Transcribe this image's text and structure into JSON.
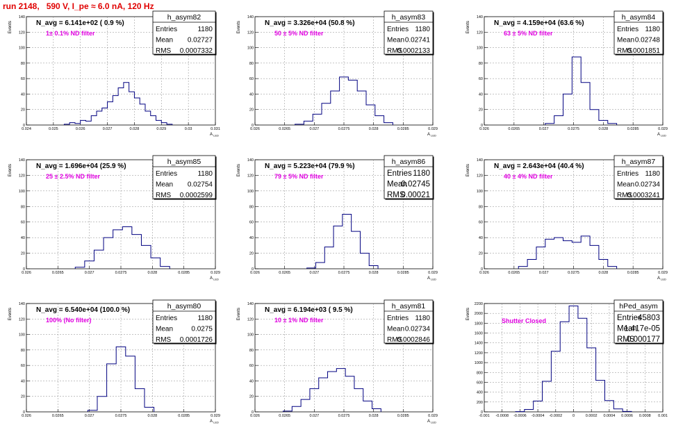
{
  "header": {
    "title": "run 2148,   590 V, I_pe ≈ 6.0 nA, 120 Hz"
  },
  "colors": {
    "title": "#e00000",
    "annotation": "#e000e0",
    "histogram": "#000080",
    "grid": "#888888"
  },
  "chart_data": [
    {
      "type": "histogram",
      "name": "h_asym82",
      "ylabel": "Events",
      "xlabel": "A_{LED}",
      "xlim": [
        0.024,
        0.031
      ],
      "ylim": [
        0,
        140
      ],
      "xticks": [
        "0.024",
        "0.025",
        "0.026",
        "0.027",
        "0.028",
        "0.029",
        "0.03",
        "0.031"
      ],
      "yticks": [
        "0",
        "20",
        "40",
        "60",
        "80",
        "100",
        "120",
        "140"
      ],
      "grid": true,
      "nav_label": "N_avg = 6.141e+02 ( 0.9 %)",
      "annotation": "1± 0.1% ND filter",
      "stats": [
        [
          "Entries",
          "1180"
        ],
        [
          "Mean",
          "0.02727"
        ],
        [
          "RMS",
          "0.0007332"
        ]
      ],
      "values": [
        [
          0.0255,
          1
        ],
        [
          0.0257,
          3
        ],
        [
          0.0259,
          2
        ],
        [
          0.0261,
          6
        ],
        [
          0.0263,
          5
        ],
        [
          0.0265,
          12
        ],
        [
          0.0267,
          18
        ],
        [
          0.0269,
          22
        ],
        [
          0.0271,
          30
        ],
        [
          0.0273,
          38
        ],
        [
          0.0275,
          48
        ],
        [
          0.0277,
          55
        ],
        [
          0.0279,
          43
        ],
        [
          0.0281,
          35
        ],
        [
          0.0283,
          27
        ],
        [
          0.0285,
          18
        ],
        [
          0.0287,
          12
        ],
        [
          0.0289,
          6
        ],
        [
          0.0291,
          3
        ],
        [
          0.0293,
          1
        ]
      ]
    },
    {
      "type": "histogram",
      "name": "h_asym83",
      "ylabel": "Events",
      "xlabel": "A_{LED}",
      "xlim": [
        0.026,
        0.029
      ],
      "ylim": [
        0,
        140
      ],
      "xticks": [
        "0.026",
        "0.0265",
        "0.027",
        "0.0275",
        "0.028",
        "0.0285",
        "0.029"
      ],
      "yticks": [
        "0",
        "20",
        "40",
        "60",
        "80",
        "100",
        "120",
        "140"
      ],
      "grid": true,
      "nav_label": "N_avg = 3.326e+04 (50.8 %)",
      "annotation": "50 ± 5% ND filter",
      "stats": [
        [
          "Entries",
          "1180"
        ],
        [
          "Mean",
          "0.02741"
        ],
        [
          "RMS",
          "0.0002133"
        ]
      ],
      "values": [
        [
          0.02675,
          1
        ],
        [
          0.0269,
          5
        ],
        [
          0.02705,
          14
        ],
        [
          0.0272,
          28
        ],
        [
          0.02735,
          44
        ],
        [
          0.0275,
          62
        ],
        [
          0.02765,
          58
        ],
        [
          0.0278,
          44
        ],
        [
          0.02795,
          26
        ],
        [
          0.0281,
          12
        ],
        [
          0.02825,
          3
        ]
      ]
    },
    {
      "type": "histogram",
      "name": "h_asym84",
      "ylabel": "Events",
      "xlabel": "A_{LED}",
      "xlim": [
        0.026,
        0.029
      ],
      "ylim": [
        0,
        140
      ],
      "xticks": [
        "0.026",
        "0.0265",
        "0.027",
        "0.0275",
        "0.028",
        "0.0285",
        "0.029"
      ],
      "yticks": [
        "0",
        "20",
        "40",
        "60",
        "80",
        "100",
        "120",
        "140"
      ],
      "grid": true,
      "nav_label": "N_avg = 4.159e+04 (63.6 %)",
      "annotation": "63 ± 5% ND filter",
      "stats": [
        [
          "Entries",
          "1180"
        ],
        [
          "Mean",
          "0.02748"
        ],
        [
          "RMS",
          "0.0001851"
        ]
      ],
      "values": [
        [
          0.0271,
          2
        ],
        [
          0.02725,
          12
        ],
        [
          0.0274,
          40
        ],
        [
          0.02755,
          88
        ],
        [
          0.0277,
          55
        ],
        [
          0.02785,
          20
        ],
        [
          0.028,
          6
        ],
        [
          0.02815,
          2
        ]
      ]
    },
    {
      "type": "histogram",
      "name": "h_asym85",
      "ylabel": "Events",
      "xlabel": "A_{LED}",
      "xlim": [
        0.026,
        0.029
      ],
      "ylim": [
        0,
        140
      ],
      "xticks": [
        "0.026",
        "0.0265",
        "0.027",
        "0.0275",
        "0.028",
        "0.0285",
        "0.029"
      ],
      "yticks": [
        "0",
        "20",
        "40",
        "60",
        "80",
        "100",
        "120",
        "140"
      ],
      "grid": true,
      "nav_label": "N_avg = 1.696e+04 (25.9 %)",
      "annotation": "25 ± 2.5% ND filter",
      "stats": [
        [
          "Entries",
          "1180"
        ],
        [
          "Mean",
          "0.02754"
        ],
        [
          "RMS",
          "0.0002599"
        ]
      ],
      "values": [
        [
          0.02685,
          2
        ],
        [
          0.027,
          10
        ],
        [
          0.02715,
          24
        ],
        [
          0.0273,
          40
        ],
        [
          0.02745,
          50
        ],
        [
          0.0276,
          54
        ],
        [
          0.02775,
          44
        ],
        [
          0.0279,
          30
        ],
        [
          0.02805,
          14
        ],
        [
          0.0282,
          3
        ]
      ]
    },
    {
      "type": "histogram",
      "name": "h_asym86",
      "ylabel": "Events",
      "xlabel": "A_{LED}",
      "xlim": [
        0.026,
        0.029
      ],
      "ylim": [
        0,
        140
      ],
      "xticks": [
        "0.026",
        "0.0265",
        "0.027",
        "0.0275",
        "0.028",
        "0.0285",
        "0.029"
      ],
      "yticks": [
        "0",
        "20",
        "40",
        "60",
        "80",
        "100",
        "120",
        "140"
      ],
      "grid": true,
      "nav_label": "N_avg = 5.223e+04 (79.9 %)",
      "annotation": "79 ± 5% ND filter",
      "stats": [
        [
          "Entries",
          "1180"
        ],
        [
          "Mean",
          "0.02745"
        ],
        [
          "RMS",
          "0.00021"
        ]
      ],
      "stats_large": true,
      "values": [
        [
          0.02695,
          1
        ],
        [
          0.0271,
          8
        ],
        [
          0.02725,
          28
        ],
        [
          0.0274,
          55
        ],
        [
          0.02755,
          70
        ],
        [
          0.0277,
          48
        ],
        [
          0.02785,
          20
        ],
        [
          0.028,
          4
        ]
      ]
    },
    {
      "type": "histogram",
      "name": "h_asym87",
      "ylabel": "Events",
      "xlabel": "A_{LED}",
      "xlim": [
        0.026,
        0.029
      ],
      "ylim": [
        0,
        140
      ],
      "xticks": [
        "0.026",
        "0.0265",
        "0.027",
        "0.0275",
        "0.028",
        "0.0285",
        "0.029"
      ],
      "yticks": [
        "0",
        "20",
        "40",
        "60",
        "80",
        "100",
        "120",
        "140"
      ],
      "grid": true,
      "nav_label": "N_avg = 2.643e+04 (40.4 %)",
      "annotation": "40 ± 4% ND filter",
      "stats": [
        [
          "Entries",
          "1180"
        ],
        [
          "Mean",
          "0.02734"
        ],
        [
          "RMS",
          "0.0003241"
        ]
      ],
      "values": [
        [
          0.02665,
          3
        ],
        [
          0.0268,
          12
        ],
        [
          0.02695,
          28
        ],
        [
          0.0271,
          38
        ],
        [
          0.02725,
          40
        ],
        [
          0.0274,
          36
        ],
        [
          0.02755,
          34
        ],
        [
          0.0277,
          42
        ],
        [
          0.02785,
          30
        ],
        [
          0.028,
          12
        ],
        [
          0.02815,
          3
        ]
      ]
    },
    {
      "type": "histogram",
      "name": "h_asym80",
      "ylabel": "Events",
      "xlabel": "A_{LED}",
      "xlim": [
        0.026,
        0.029
      ],
      "ylim": [
        0,
        140
      ],
      "xticks": [
        "0.026",
        "0.0265",
        "0.027",
        "0.0275",
        "0.028",
        "0.0285",
        "0.029"
      ],
      "yticks": [
        "0",
        "20",
        "40",
        "60",
        "80",
        "100",
        "120",
        "140"
      ],
      "grid": true,
      "nav_label": "N_avg = 6.540e+04 (100.0 %)",
      "annotation": "100% (No filter)",
      "stats": [
        [
          "Entries",
          "1180"
        ],
        [
          "Mean",
          "0.0275"
        ],
        [
          "RMS",
          "0.0001726"
        ]
      ],
      "values": [
        [
          0.02705,
          2
        ],
        [
          0.0272,
          20
        ],
        [
          0.02735,
          62
        ],
        [
          0.0275,
          84
        ],
        [
          0.02765,
          72
        ],
        [
          0.0278,
          30
        ],
        [
          0.02795,
          6
        ]
      ]
    },
    {
      "type": "histogram",
      "name": "h_asym81",
      "ylabel": "Events",
      "xlabel": "A_{LED}",
      "xlim": [
        0.026,
        0.029
      ],
      "ylim": [
        0,
        140
      ],
      "xticks": [
        "0.026",
        "0.0265",
        "0.027",
        "0.0275",
        "0.028",
        "0.0285",
        "0.029"
      ],
      "yticks": [
        "0",
        "20",
        "40",
        "60",
        "80",
        "100",
        "120",
        "140"
      ],
      "grid": true,
      "nav_label": "N_avg = 6.194e+03 ( 9.5 %)",
      "annotation": "10 ± 1% ND filter",
      "stats": [
        [
          "Entries",
          "1180"
        ],
        [
          "Mean",
          "0.02734"
        ],
        [
          "RMS",
          "0.0002846"
        ]
      ],
      "values": [
        [
          0.02655,
          1
        ],
        [
          0.0267,
          7
        ],
        [
          0.02685,
          16
        ],
        [
          0.027,
          30
        ],
        [
          0.02715,
          44
        ],
        [
          0.0273,
          52
        ],
        [
          0.02745,
          56
        ],
        [
          0.0276,
          46
        ],
        [
          0.02775,
          30
        ],
        [
          0.0279,
          14
        ],
        [
          0.02805,
          4
        ]
      ]
    },
    {
      "type": "histogram",
      "name": "hPed_asym",
      "ylabel": "Events",
      "xlabel": "",
      "xlim": [
        -0.001,
        0.001
      ],
      "ylim": [
        0,
        2200
      ],
      "xticks": [
        "-0.001",
        "-0.0008",
        "-0.0006",
        "-0.0004",
        "-0.0002",
        "0",
        "0.0002",
        "0.0004",
        "0.0006",
        "0.0008",
        "0.001"
      ],
      "yticks": [
        "0",
        "200",
        "400",
        "600",
        "800",
        "1000",
        "1200",
        "1400",
        "1600",
        "1800",
        "2000",
        "2200"
      ],
      "grid": true,
      "nav_label": "",
      "annotation": "Shutter Closed",
      "stats": [
        [
          "Entries",
          "45803"
        ],
        [
          "Mean",
          "1.417e-05"
        ],
        [
          "RMS",
          "0.000177"
        ]
      ],
      "stats_large": true,
      "values": [
        [
          -0.0006,
          5
        ],
        [
          -0.0005,
          50
        ],
        [
          -0.0004,
          220
        ],
        [
          -0.0003,
          620
        ],
        [
          -0.0002,
          1230
        ],
        [
          -0.0001,
          1830
        ],
        [
          0,
          2150
        ],
        [
          0.0001,
          1900
        ],
        [
          0.0002,
          1300
        ],
        [
          0.0003,
          640
        ],
        [
          0.0004,
          230
        ],
        [
          0.0005,
          60
        ],
        [
          0.0006,
          8
        ]
      ]
    }
  ]
}
